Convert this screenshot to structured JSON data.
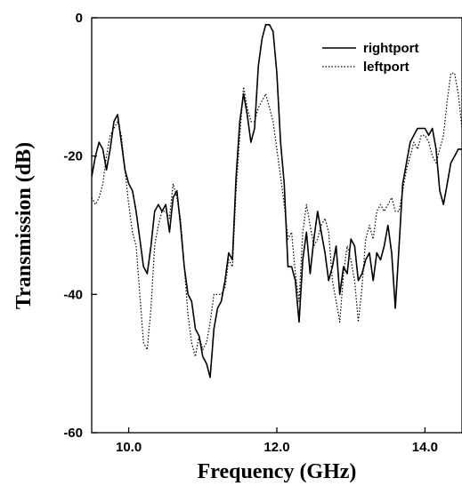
{
  "chart_data": {
    "type": "line",
    "xlabel": "Frequency (GHz)",
    "ylabel": "Transmission (dB)",
    "xlim": [
      9.5,
      14.5
    ],
    "ylim": [
      -60,
      0
    ],
    "x_ticks": [
      10.0,
      12.0,
      14.0
    ],
    "x_tick_labels": [
      "10.0",
      "12.0",
      "14.0"
    ],
    "y_ticks": [
      -60,
      -40,
      -20,
      0
    ],
    "y_tick_labels": [
      "-60",
      "-40",
      "-20",
      "0"
    ],
    "grid": false,
    "legend": {
      "placement": "top-right",
      "entries": [
        "rightport",
        "leftport"
      ]
    },
    "colors": {
      "line": "#000000"
    },
    "series": [
      {
        "name": "rightport",
        "style": "solid",
        "points": [
          [
            9.5,
            -23
          ],
          [
            9.55,
            -20
          ],
          [
            9.6,
            -18
          ],
          [
            9.65,
            -19
          ],
          [
            9.7,
            -22
          ],
          [
            9.75,
            -19
          ],
          [
            9.8,
            -15
          ],
          [
            9.85,
            -14
          ],
          [
            9.9,
            -18
          ],
          [
            9.95,
            -22
          ],
          [
            10.0,
            -24
          ],
          [
            10.05,
            -25
          ],
          [
            10.1,
            -28
          ],
          [
            10.15,
            -32
          ],
          [
            10.2,
            -36
          ],
          [
            10.25,
            -37
          ],
          [
            10.3,
            -33
          ],
          [
            10.35,
            -28
          ],
          [
            10.4,
            -27
          ],
          [
            10.45,
            -28
          ],
          [
            10.5,
            -27
          ],
          [
            10.55,
            -31
          ],
          [
            10.6,
            -26
          ],
          [
            10.65,
            -25
          ],
          [
            10.7,
            -30
          ],
          [
            10.75,
            -36
          ],
          [
            10.8,
            -40
          ],
          [
            10.85,
            -41
          ],
          [
            10.9,
            -45
          ],
          [
            10.95,
            -46
          ],
          [
            11.0,
            -49
          ],
          [
            11.05,
            -50
          ],
          [
            11.1,
            -52
          ],
          [
            11.15,
            -45
          ],
          [
            11.2,
            -42
          ],
          [
            11.25,
            -41
          ],
          [
            11.3,
            -38
          ],
          [
            11.35,
            -34
          ],
          [
            11.4,
            -35
          ],
          [
            11.45,
            -23
          ],
          [
            11.5,
            -15
          ],
          [
            11.55,
            -11
          ],
          [
            11.6,
            -14
          ],
          [
            11.65,
            -18
          ],
          [
            11.7,
            -16
          ],
          [
            11.75,
            -7
          ],
          [
            11.8,
            -3
          ],
          [
            11.85,
            -1
          ],
          [
            11.9,
            -1
          ],
          [
            11.95,
            -2
          ],
          [
            12.0,
            -8
          ],
          [
            12.05,
            -18
          ],
          [
            12.1,
            -24
          ],
          [
            12.15,
            -36
          ],
          [
            12.2,
            -36
          ],
          [
            12.25,
            -38
          ],
          [
            12.3,
            -44
          ],
          [
            12.35,
            -35
          ],
          [
            12.4,
            -31
          ],
          [
            12.45,
            -37
          ],
          [
            12.5,
            -32
          ],
          [
            12.55,
            -28
          ],
          [
            12.6,
            -31
          ],
          [
            12.65,
            -34
          ],
          [
            12.7,
            -38
          ],
          [
            12.75,
            -36
          ],
          [
            12.8,
            -33
          ],
          [
            12.85,
            -40
          ],
          [
            12.9,
            -36
          ],
          [
            12.95,
            -37
          ],
          [
            13.0,
            -32
          ],
          [
            13.05,
            -33
          ],
          [
            13.1,
            -38
          ],
          [
            13.15,
            -37
          ],
          [
            13.2,
            -35
          ],
          [
            13.25,
            -34
          ],
          [
            13.3,
            -38
          ],
          [
            13.35,
            -34
          ],
          [
            13.4,
            -35
          ],
          [
            13.45,
            -33
          ],
          [
            13.5,
            -30
          ],
          [
            13.55,
            -34
          ],
          [
            13.6,
            -42
          ],
          [
            13.65,
            -33
          ],
          [
            13.7,
            -24
          ],
          [
            13.75,
            -21
          ],
          [
            13.8,
            -18
          ],
          [
            13.85,
            -17
          ],
          [
            13.9,
            -16
          ],
          [
            13.95,
            -16
          ],
          [
            14.0,
            -16
          ],
          [
            14.05,
            -17
          ],
          [
            14.1,
            -16
          ],
          [
            14.15,
            -19
          ],
          [
            14.2,
            -25
          ],
          [
            14.25,
            -27
          ],
          [
            14.3,
            -24
          ],
          [
            14.35,
            -21
          ],
          [
            14.4,
            -20
          ],
          [
            14.45,
            -19
          ],
          [
            14.5,
            -19
          ]
        ]
      },
      {
        "name": "leftport",
        "style": "dotted",
        "points": [
          [
            9.5,
            -26
          ],
          [
            9.55,
            -27
          ],
          [
            9.6,
            -26
          ],
          [
            9.65,
            -24
          ],
          [
            9.7,
            -20
          ],
          [
            9.75,
            -17
          ],
          [
            9.8,
            -16
          ],
          [
            9.85,
            -15
          ],
          [
            9.9,
            -17
          ],
          [
            9.95,
            -22
          ],
          [
            10.0,
            -27
          ],
          [
            10.05,
            -31
          ],
          [
            10.1,
            -33
          ],
          [
            10.15,
            -40
          ],
          [
            10.2,
            -47
          ],
          [
            10.25,
            -48
          ],
          [
            10.3,
            -42
          ],
          [
            10.35,
            -33
          ],
          [
            10.4,
            -30
          ],
          [
            10.45,
            -28
          ],
          [
            10.5,
            -28
          ],
          [
            10.55,
            -29
          ],
          [
            10.6,
            -24
          ],
          [
            10.65,
            -26
          ],
          [
            10.7,
            -29
          ],
          [
            10.75,
            -36
          ],
          [
            10.8,
            -43
          ],
          [
            10.85,
            -47
          ],
          [
            10.9,
            -49
          ],
          [
            10.95,
            -46
          ],
          [
            11.0,
            -48
          ],
          [
            11.05,
            -47
          ],
          [
            11.1,
            -44
          ],
          [
            11.15,
            -40
          ],
          [
            11.2,
            -40
          ],
          [
            11.25,
            -40
          ],
          [
            11.3,
            -39
          ],
          [
            11.35,
            -35
          ],
          [
            11.4,
            -36
          ],
          [
            11.45,
            -25
          ],
          [
            11.5,
            -17
          ],
          [
            11.55,
            -10
          ],
          [
            11.6,
            -13
          ],
          [
            11.65,
            -15
          ],
          [
            11.7,
            -15
          ],
          [
            11.75,
            -13
          ],
          [
            11.8,
            -12
          ],
          [
            11.85,
            -11
          ],
          [
            11.9,
            -13
          ],
          [
            11.95,
            -15
          ],
          [
            12.0,
            -19
          ],
          [
            12.05,
            -23
          ],
          [
            12.1,
            -27
          ],
          [
            12.15,
            -32
          ],
          [
            12.2,
            -31
          ],
          [
            12.25,
            -37
          ],
          [
            12.3,
            -41
          ],
          [
            12.35,
            -31
          ],
          [
            12.4,
            -27
          ],
          [
            12.45,
            -30
          ],
          [
            12.5,
            -33
          ],
          [
            12.55,
            -32
          ],
          [
            12.6,
            -30
          ],
          [
            12.65,
            -29
          ],
          [
            12.7,
            -31
          ],
          [
            12.75,
            -38
          ],
          [
            12.8,
            -41
          ],
          [
            12.85,
            -44
          ],
          [
            12.9,
            -37
          ],
          [
            12.95,
            -33
          ],
          [
            13.0,
            -35
          ],
          [
            13.05,
            -38
          ],
          [
            13.1,
            -44
          ],
          [
            13.15,
            -39
          ],
          [
            13.2,
            -32
          ],
          [
            13.25,
            -30
          ],
          [
            13.3,
            -32
          ],
          [
            13.35,
            -28
          ],
          [
            13.4,
            -27
          ],
          [
            13.45,
            -28
          ],
          [
            13.5,
            -27
          ],
          [
            13.55,
            -26
          ],
          [
            13.6,
            -28
          ],
          [
            13.65,
            -28
          ],
          [
            13.7,
            -25
          ],
          [
            13.75,
            -22
          ],
          [
            13.8,
            -20
          ],
          [
            13.85,
            -18
          ],
          [
            13.9,
            -19
          ],
          [
            13.95,
            -17
          ],
          [
            14.0,
            -17
          ],
          [
            14.05,
            -18
          ],
          [
            14.1,
            -20
          ],
          [
            14.15,
            -21
          ],
          [
            14.2,
            -19
          ],
          [
            14.25,
            -17
          ],
          [
            14.3,
            -12
          ],
          [
            14.35,
            -8
          ],
          [
            14.4,
            -8
          ],
          [
            14.45,
            -11
          ],
          [
            14.5,
            -16
          ]
        ]
      }
    ]
  }
}
